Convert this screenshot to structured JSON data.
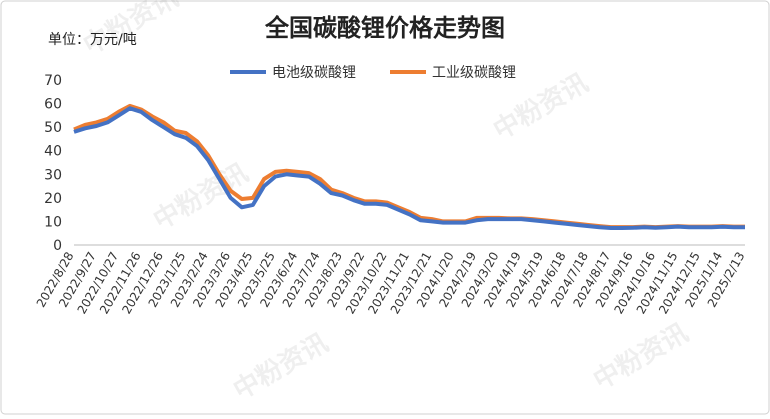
{
  "chart_data": {
    "type": "line",
    "title": "全国碳酸锂价格走势图",
    "unit_label": "单位：万元/吨",
    "watermark": "中粉资讯",
    "categories": [
      "2022/8/28",
      null,
      "2022/9/27",
      null,
      "2022/10/27",
      null,
      "2022/11/26",
      null,
      "2022/12/26",
      null,
      "2023/1/25",
      null,
      "2023/2/24",
      null,
      "2023/3/26",
      null,
      "2023/4/25",
      null,
      "2023/5/25",
      null,
      "2023/6/24",
      null,
      "2023/7/24",
      null,
      "2023/8/23",
      null,
      "2023/9/22",
      null,
      "2023/10/22",
      null,
      "2023/11/21",
      null,
      "2023/12/21",
      null,
      "2024/1/20",
      null,
      "2024/2/19",
      null,
      "2024/3/20",
      null,
      "2024/4/19",
      null,
      "2024/5/19",
      null,
      "2024/6/18",
      null,
      "2024/7/18",
      null,
      "2024/8/17",
      null,
      "2024/9/16",
      null,
      "2024/10/16",
      null,
      "2024/11/15",
      null,
      "2024/12/15",
      null,
      "2025/1/14",
      null,
      "2025/2/13"
    ],
    "series": [
      {
        "name": "电池级碳酸锂",
        "color": "#4472c4",
        "values": [
          48,
          49.5,
          50.5,
          52,
          55,
          58,
          56.5,
          53,
          50,
          47,
          45.5,
          42,
          36,
          28,
          20,
          16,
          17,
          25,
          29,
          30,
          29.5,
          29,
          26,
          22,
          21,
          19,
          17.5,
          17.5,
          17,
          15,
          13,
          10.5,
          10,
          9.5,
          9.5,
          9.5,
          10.5,
          11,
          11,
          11,
          11,
          10.5,
          10,
          9.5,
          9,
          8.5,
          8,
          7.5,
          7.2,
          7.2,
          7.3,
          7.5,
          7.3,
          7.5,
          7.8,
          7.5,
          7.5,
          7.5,
          7.7,
          7.5,
          7.5
        ]
      },
      {
        "name": "工业级碳酸锂",
        "color": "#ed7d31",
        "values": [
          49,
          51,
          52,
          53.5,
          56.5,
          59,
          57.5,
          54.5,
          52,
          48.5,
          47.5,
          44,
          38,
          30,
          23,
          19.5,
          20,
          28,
          31,
          31.5,
          31,
          30.5,
          28,
          23.5,
          22,
          20,
          18.5,
          18.5,
          18,
          16,
          14,
          11.5,
          11,
          10,
          10,
          10,
          11.5,
          11.5,
          11.5,
          11.3,
          11.3,
          11,
          10.5,
          10,
          9.5,
          9,
          8.5,
          8,
          7.6,
          7.6,
          7.6,
          7.8,
          7.6,
          7.8,
          8,
          7.8,
          7.8,
          7.8,
          8,
          7.8,
          7.8
        ]
      }
    ],
    "ylim": [
      0,
      70
    ],
    "yticks": [
      0,
      10,
      20,
      30,
      40,
      50,
      60,
      70
    ],
    "grid": false
  }
}
